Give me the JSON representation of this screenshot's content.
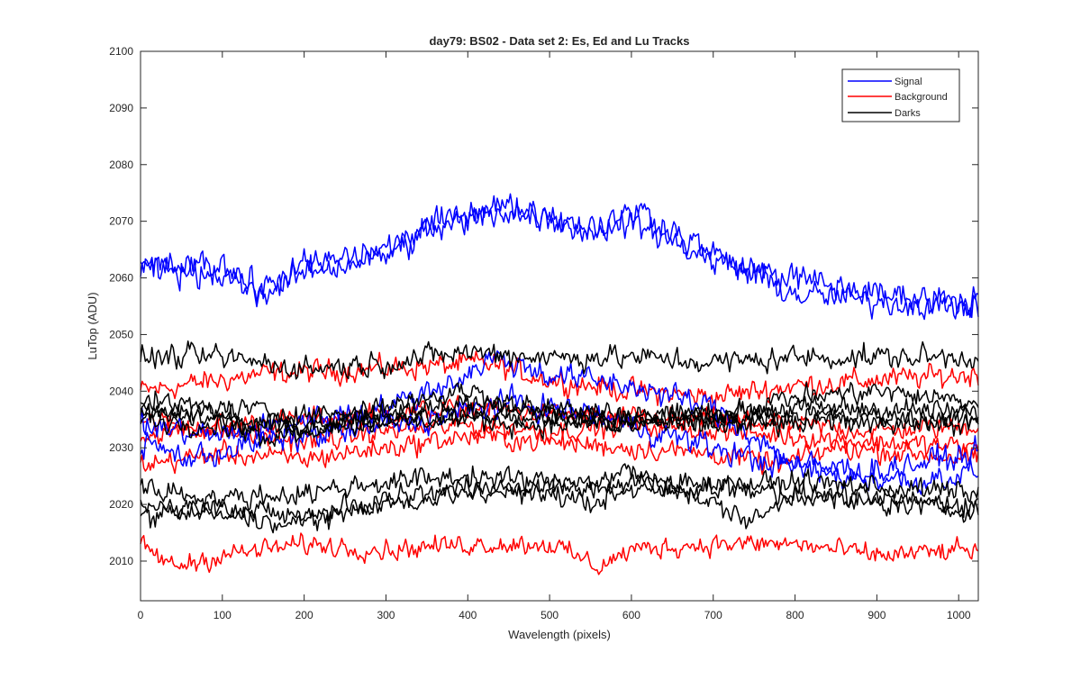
{
  "chart_data": {
    "type": "line",
    "title": "day79: BS02 - Data set 2: Es, Ed and Lu Tracks",
    "xlabel": "Wavelength (pixels)",
    "ylabel": "LuTop (ADU)",
    "xlim": [
      0,
      1024
    ],
    "ylim": [
      2003,
      2100
    ],
    "xticks": [
      0,
      100,
      200,
      300,
      400,
      500,
      600,
      700,
      800,
      900,
      1000
    ],
    "yticks": [
      2010,
      2020,
      2030,
      2040,
      2050,
      2060,
      2070,
      2080,
      2090,
      2100
    ],
    "grid": false,
    "legend_position": "top-right",
    "legend": [
      {
        "label": "Signal",
        "color": "#0000ff"
      },
      {
        "label": "Background",
        "color": "#ff0000"
      },
      {
        "label": "Darks",
        "color": "#000000"
      }
    ],
    "series": [
      {
        "group": "Signal",
        "color": "#0000ff",
        "noise": 2.0,
        "x": [
          0,
          100,
          150,
          200,
          300,
          350,
          430,
          500,
          550,
          600,
          700,
          800,
          900,
          1024
        ],
        "y": [
          2061,
          2061,
          2058,
          2062,
          2065,
          2069,
          2073,
          2071,
          2069,
          2070,
          2063,
          2060,
          2057,
          2056
        ]
      },
      {
        "group": "Signal",
        "color": "#0000ff",
        "noise": 2.0,
        "x": [
          0,
          100,
          150,
          200,
          300,
          350,
          440,
          500,
          550,
          610,
          700,
          800,
          900,
          1024
        ],
        "y": [
          2062,
          2062,
          2057,
          2061,
          2064,
          2068,
          2072,
          2071,
          2068,
          2072,
          2064,
          2057,
          2056,
          2055
        ]
      },
      {
        "group": "Signal",
        "color": "#0000ff",
        "noise": 1.8,
        "x": [
          0,
          100,
          200,
          300,
          400,
          430,
          500,
          600,
          700,
          800,
          900,
          1024
        ],
        "y": [
          2034,
          2032,
          2035,
          2037,
          2043,
          2046,
          2043,
          2041,
          2037,
          2027,
          2026,
          2029
        ]
      },
      {
        "group": "Signal",
        "color": "#0000ff",
        "noise": 1.8,
        "x": [
          0,
          60,
          150,
          250,
          350,
          450,
          550,
          650,
          750,
          850,
          950,
          1024
        ],
        "y": [
          2031,
          2028,
          2031,
          2033,
          2035,
          2038,
          2036,
          2032,
          2028,
          2025,
          2024,
          2026
        ]
      },
      {
        "group": "Background",
        "color": "#ff0000",
        "noise": 1.6,
        "x": [
          0,
          150,
          300,
          420,
          500,
          600,
          700,
          800,
          900,
          1024
        ],
        "y": [
          2040,
          2043,
          2044,
          2045,
          2042,
          2040,
          2039,
          2041,
          2042,
          2043
        ]
      },
      {
        "group": "Background",
        "color": "#ff0000",
        "noise": 1.5,
        "x": [
          0,
          100,
          200,
          300,
          400,
          500,
          600,
          700,
          800,
          900,
          1024
        ],
        "y": [
          2032,
          2034,
          2035,
          2036,
          2037,
          2036,
          2035,
          2035,
          2034,
          2033,
          2034
        ]
      },
      {
        "group": "Background",
        "color": "#ff0000",
        "noise": 1.5,
        "x": [
          0,
          100,
          200,
          300,
          400,
          500,
          600,
          700,
          800,
          900,
          1024
        ],
        "y": [
          2035,
          2033,
          2031,
          2033,
          2034,
          2033,
          2034,
          2033,
          2032,
          2031,
          2030
        ]
      },
      {
        "group": "Background",
        "color": "#ff0000",
        "noise": 1.5,
        "x": [
          0,
          100,
          200,
          300,
          400,
          500,
          600,
          700,
          780,
          850,
          950,
          1024
        ],
        "y": [
          2027,
          2029,
          2028,
          2030,
          2032,
          2031,
          2030,
          2029,
          2027,
          2030,
          2029,
          2028
        ]
      },
      {
        "group": "Background",
        "color": "#ff0000",
        "noise": 1.4,
        "x": [
          0,
          40,
          100,
          200,
          300,
          400,
          500,
          560,
          600,
          700,
          800,
          900,
          1024
        ],
        "y": [
          2013,
          2009,
          2011,
          2013,
          2012,
          2013,
          2013,
          2009,
          2012,
          2013,
          2013,
          2011,
          2012
        ]
      },
      {
        "group": "Darks",
        "color": "#000000",
        "noise": 1.6,
        "x": [
          0,
          100,
          200,
          300,
          400,
          500,
          600,
          700,
          800,
          900,
          1024
        ],
        "y": [
          2046,
          2046,
          2044,
          2045,
          2047,
          2046,
          2046,
          2045,
          2046,
          2046,
          2046
        ]
      },
      {
        "group": "Darks",
        "color": "#000000",
        "noise": 1.5,
        "x": [
          0,
          100,
          200,
          300,
          400,
          500,
          600,
          700,
          800,
          900,
          1024
        ],
        "y": [
          2038,
          2037,
          2036,
          2036,
          2038,
          2037,
          2036,
          2036,
          2037,
          2037,
          2036
        ]
      },
      {
        "group": "Darks",
        "color": "#000000",
        "noise": 1.5,
        "x": [
          0,
          100,
          200,
          300,
          400,
          500,
          600,
          700,
          800,
          900,
          1024
        ],
        "y": [
          2035,
          2034,
          2034,
          2035,
          2035,
          2034,
          2035,
          2034,
          2034,
          2035,
          2034
        ]
      },
      {
        "group": "Darks",
        "color": "#000000",
        "noise": 1.5,
        "x": [
          0,
          100,
          200,
          300,
          400,
          500,
          600,
          700,
          800,
          900,
          1024
        ],
        "y": [
          2036,
          2035,
          2033,
          2035,
          2036,
          2035,
          2034,
          2035,
          2036,
          2035,
          2035
        ]
      },
      {
        "group": "Darks",
        "color": "#000000",
        "noise": 1.5,
        "x": [
          0,
          100,
          150,
          200,
          300,
          400,
          500,
          600,
          700,
          800,
          900,
          1024
        ],
        "y": [
          2037,
          2036,
          2031,
          2033,
          2038,
          2040,
          2036,
          2034,
          2036,
          2039,
          2040,
          2038
        ]
      },
      {
        "group": "Darks",
        "color": "#000000",
        "noise": 1.5,
        "x": [
          0,
          100,
          200,
          300,
          400,
          500,
          600,
          700,
          800,
          900,
          1024
        ],
        "y": [
          2023,
          2021,
          2022,
          2024,
          2025,
          2024,
          2022,
          2023,
          2024,
          2023,
          2022
        ]
      },
      {
        "group": "Darks",
        "color": "#000000",
        "noise": 1.5,
        "x": [
          0,
          100,
          180,
          250,
          300,
          400,
          500,
          550,
          600,
          700,
          800,
          900,
          1024
        ],
        "y": [
          2018,
          2019,
          2016,
          2019,
          2021,
          2023,
          2022,
          2020,
          2024,
          2024,
          2022,
          2021,
          2020
        ]
      },
      {
        "group": "Darks",
        "color": "#000000",
        "noise": 1.4,
        "x": [
          0,
          100,
          200,
          300,
          400,
          500,
          550,
          600,
          700,
          750,
          800,
          900,
          1024
        ],
        "y": [
          2020,
          2019,
          2018,
          2020,
          2022,
          2023,
          2024,
          2026,
          2020,
          2017,
          2022,
          2020,
          2019
        ]
      }
    ]
  }
}
